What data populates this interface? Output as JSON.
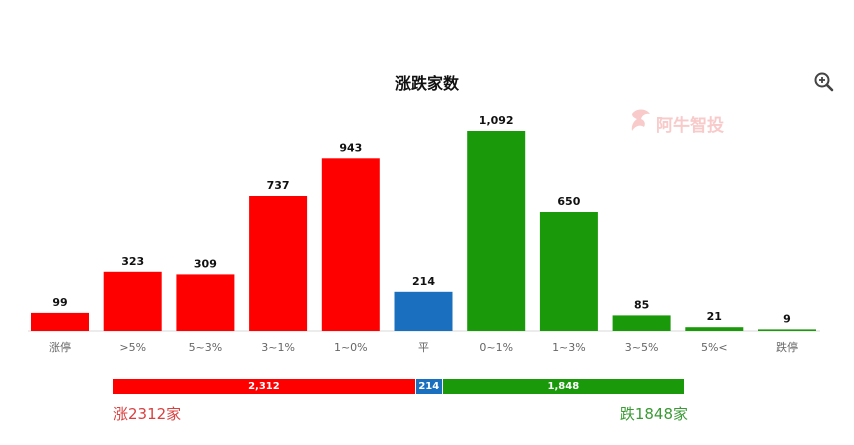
{
  "chart_data": {
    "type": "bar",
    "title": "涨跌家数",
    "categories": [
      "涨停",
      ">5%",
      "5~3%",
      "3~1%",
      "1~0%",
      "平",
      "0~1%",
      "1~3%",
      "3~5%",
      "5%<",
      "跌停"
    ],
    "values": [
      99,
      323,
      309,
      737,
      943,
      214,
      1092,
      650,
      85,
      21,
      9
    ],
    "value_labels": [
      "99",
      "323",
      "309",
      "737",
      "943",
      "214",
      "1,092",
      "650",
      "85",
      "21",
      "9"
    ],
    "bar_colors": [
      "#ff0000",
      "#ff0000",
      "#ff0000",
      "#ff0000",
      "#ff0000",
      "#1a6fbe",
      "#1a9a0a",
      "#1a9a0a",
      "#1a9a0a",
      "#1a9a0a",
      "#1a9a0a"
    ],
    "grid": false,
    "legend": "none"
  },
  "summary": {
    "up_value": 2312,
    "flat_value": 214,
    "down_value": 1848,
    "up_label": "2,312",
    "flat_label": "214",
    "down_label": "1,848",
    "up_text": "涨2312家",
    "down_text": "跌1848家"
  },
  "watermark_text": "阿牛智投",
  "icons": {
    "zoom": "zoom-in-icon"
  },
  "colors": {
    "up": "#ff0000",
    "flat": "#1a6fbe",
    "down": "#1a9a0a",
    "up_text": "#d94040",
    "down_text": "#3a9a35",
    "axis_label": "#666666",
    "value_label": "#111111"
  }
}
